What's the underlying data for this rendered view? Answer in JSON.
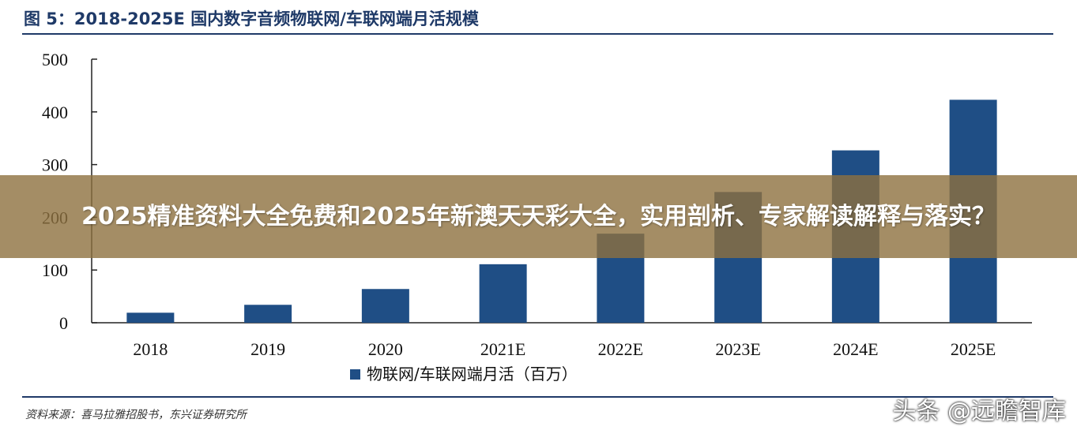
{
  "figure": {
    "title": "图 5：2018-2025E 国内数字音频物联网/车联网端月活规模",
    "source": "资料来源：喜马拉雅招股书，东兴证券研究所"
  },
  "chart_data": {
    "type": "bar",
    "title": "图 5：2018-2025E 国内数字音频物联网/车联网端月活规模",
    "categories": [
      "2018",
      "2019",
      "2020",
      "2021E",
      "2022E",
      "2023E",
      "2024E",
      "2025E"
    ],
    "series": [
      {
        "name": "物联网/车联网端月活（百万）",
        "values": [
          19,
          34,
          64,
          111,
          169,
          248,
          327,
          423
        ],
        "color": "#1f4e85"
      }
    ],
    "ylim": [
      0,
      500
    ],
    "yticks": [
      "0",
      "100",
      "200",
      "300",
      "400",
      "500"
    ],
    "xlabel": "",
    "ylabel": "",
    "grid": false,
    "legend_position": "bottom"
  },
  "banner": {
    "text": "2025精准资料大全免费和2025年新澳天天彩大全，实用剖析、专家解读解释与落实？"
  },
  "watermark": {
    "text": "头条 @远瞻智库"
  },
  "colors": {
    "accent": "#1f3a68",
    "bar": "#1f4e85",
    "banner": "#8d703f"
  }
}
